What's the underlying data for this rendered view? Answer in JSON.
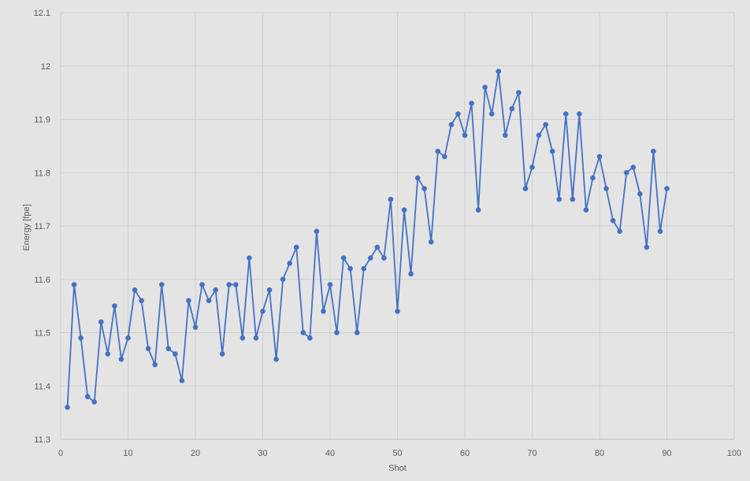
{
  "chart_data": {
    "type": "line",
    "xlabel": "Shot",
    "ylabel": "Energy [fpe]",
    "xlim": [
      0,
      100
    ],
    "ylim": [
      11.3,
      12.1
    ],
    "x_ticks": [
      "0",
      "10",
      "20",
      "30",
      "40",
      "50",
      "60",
      "70",
      "80",
      "90",
      "100"
    ],
    "y_ticks": [
      "11.3",
      "11.4",
      "11.5",
      "11.6",
      "11.7",
      "11.8",
      "11.9",
      "12",
      "12.1"
    ],
    "grid": true,
    "legend": "none",
    "series": [
      {
        "color": "#4472c4",
        "marker": "circle",
        "x": [
          1,
          2,
          3,
          4,
          5,
          6,
          7,
          8,
          9,
          10,
          11,
          12,
          13,
          14,
          15,
          16,
          17,
          18,
          19,
          20,
          21,
          22,
          23,
          24,
          25,
          26,
          27,
          28,
          29,
          30,
          31,
          32,
          33,
          34,
          35,
          36,
          37,
          38,
          39,
          40,
          41,
          42,
          43,
          44,
          45,
          46,
          47,
          48,
          49,
          50,
          51,
          52,
          53,
          54,
          55,
          56,
          57,
          58,
          59,
          60,
          61,
          62,
          63,
          64,
          65,
          66,
          67,
          68,
          69,
          70,
          71,
          72,
          73,
          74,
          75,
          76,
          77,
          78,
          79,
          80,
          81,
          82,
          83,
          84,
          85,
          86,
          87,
          88,
          89,
          90
        ],
        "y": [
          11.36,
          11.59,
          11.49,
          11.38,
          11.37,
          11.52,
          11.46,
          11.55,
          11.45,
          11.49,
          11.58,
          11.56,
          11.47,
          11.44,
          11.59,
          11.47,
          11.46,
          11.41,
          11.56,
          11.51,
          11.59,
          11.56,
          11.58,
          11.46,
          11.59,
          11.59,
          11.49,
          11.64,
          11.49,
          11.54,
          11.58,
          11.45,
          11.6,
          11.63,
          11.66,
          11.5,
          11.49,
          11.69,
          11.54,
          11.59,
          11.5,
          11.64,
          11.62,
          11.5,
          11.62,
          11.64,
          11.66,
          11.64,
          11.75,
          11.54,
          11.73,
          11.61,
          11.79,
          11.77,
          11.67,
          11.84,
          11.83,
          11.89,
          11.91,
          11.87,
          11.93,
          11.73,
          11.96,
          11.91,
          11.99,
          11.87,
          11.92,
          11.95,
          11.77,
          11.81,
          11.87,
          11.89,
          11.84,
          11.75,
          11.91,
          11.75,
          11.91,
          11.73,
          11.79,
          11.83,
          11.77,
          11.71,
          11.69,
          11.8,
          11.81,
          11.76,
          11.66,
          11.84,
          11.69,
          11.77
        ]
      }
    ]
  }
}
